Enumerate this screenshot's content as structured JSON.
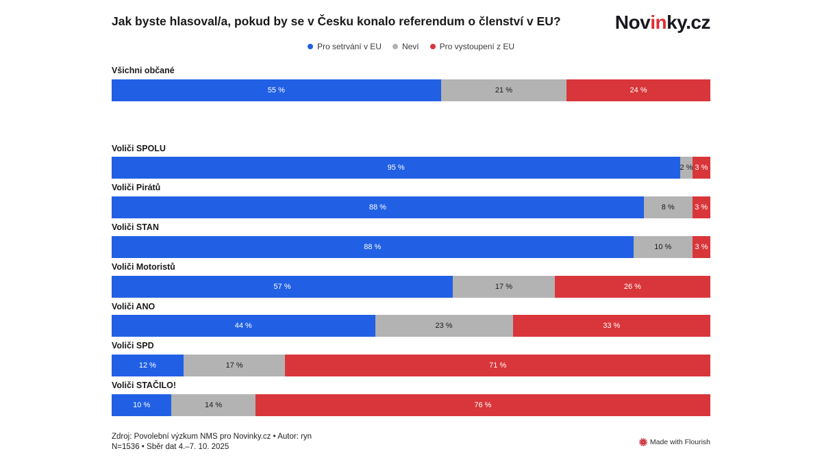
{
  "header": {
    "title": "Jak byste hlasoval/a, pokud by se v Česku konalo referendum o členství v EU?",
    "logo": {
      "part1": "Nov",
      "part2": "in",
      "part3": "ky.cz"
    }
  },
  "legend": {
    "items": [
      {
        "label": "Pro setrvání v EU",
        "color": "#2160e4",
        "key": "stay-eu"
      },
      {
        "label": "Neví",
        "color": "#b3b3b3",
        "key": "undecided"
      },
      {
        "label": "Pro vystoupení z EU",
        "color": "#d8363a",
        "key": "leave-eu"
      }
    ]
  },
  "chart_data": {
    "type": "bar",
    "orientation": "horizontal",
    "stacked": true,
    "unit": "%",
    "title": "Jak byste hlasoval/a, pokud by se v Česku konalo referendum o členství v EU?",
    "series": [
      "Pro setrvání v EU",
      "Neví",
      "Pro vystoupení z EU"
    ],
    "series_keys": [
      "stay-eu",
      "undecided",
      "leave-eu"
    ],
    "colors": [
      "#2160e4",
      "#b3b3b3",
      "#d8363a"
    ],
    "label_text_colors": [
      "#ffffff",
      "#191919",
      "#ffffff"
    ],
    "xlim": [
      0,
      100
    ],
    "legend_position": "top-center",
    "rows": [
      {
        "label": "Všichni občané",
        "values": [
          55,
          21,
          24
        ],
        "gap_after": true
      },
      {
        "label": "Voliči SPOLU",
        "values": [
          95,
          2,
          3
        ]
      },
      {
        "label": "Voliči Pirátů",
        "values": [
          88,
          8,
          3
        ]
      },
      {
        "label": "Voliči STAN",
        "values": [
          88,
          10,
          3
        ]
      },
      {
        "label": "Voliči Motoristů",
        "values": [
          57,
          17,
          26
        ]
      },
      {
        "label": "Voliči ANO",
        "values": [
          44,
          23,
          33
        ]
      },
      {
        "label": "Voliči SPD",
        "values": [
          12,
          17,
          71
        ]
      },
      {
        "label": "Voliči STAČILO!",
        "values": [
          10,
          14,
          76
        ]
      }
    ]
  },
  "footer": {
    "line1": "Zdroj: Povolební výzkum NMS pro Novinky.cz • Autor: ryn",
    "line2": "N=1536 • Sběr dat 4.–7. 10. 2025",
    "credit": "Made with Flourish"
  }
}
